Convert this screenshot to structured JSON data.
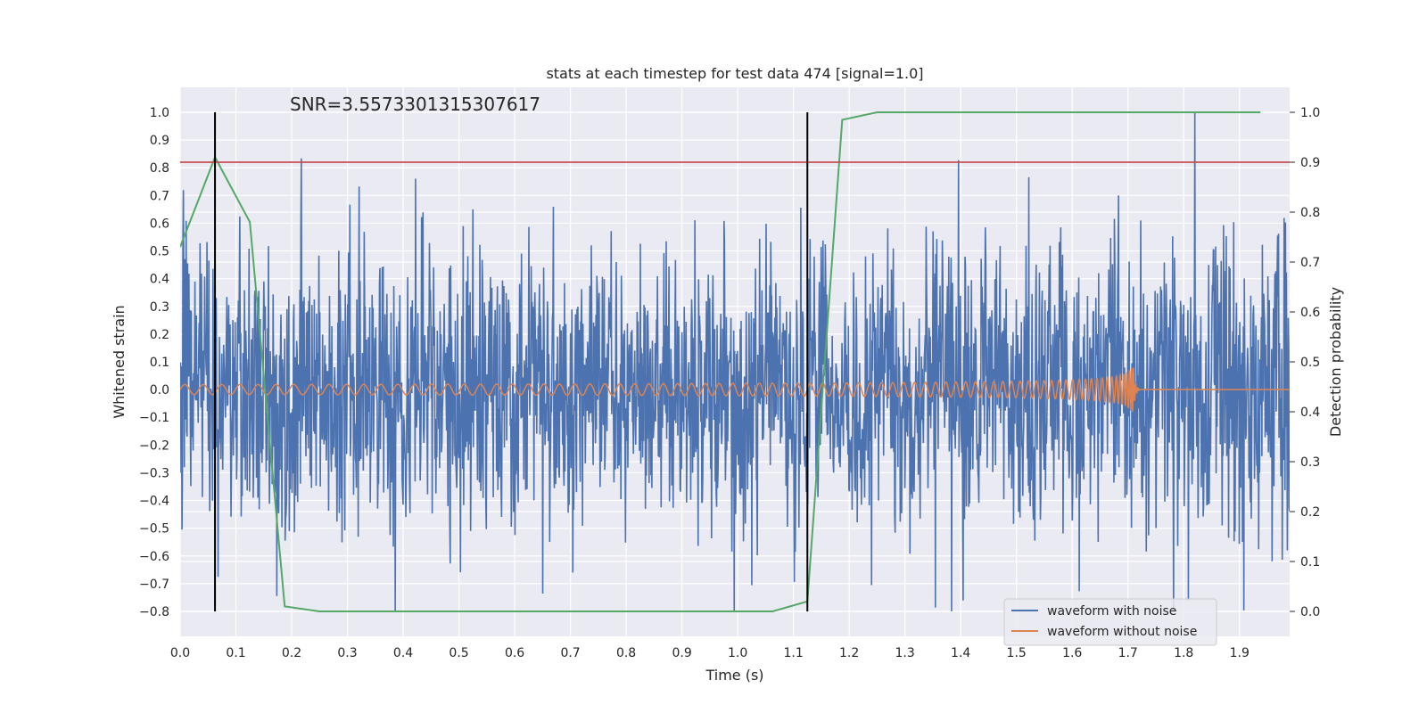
{
  "chart_data": {
    "type": "line",
    "title": "stats at each timestep for test data 474 [signal=1.0]",
    "xlabel": "Time (s)",
    "ylabel": "Whitened strain",
    "y2label": "Detection probability",
    "annotation": "SNR=3.5573301315307617",
    "xlim": [
      0.0,
      1.99
    ],
    "ylim": [
      -0.89,
      1.09
    ],
    "y2lim": [
      -0.05,
      1.05
    ],
    "xticks": [
      "0.0",
      "0.1",
      "0.2",
      "0.3",
      "0.4",
      "0.5",
      "0.6",
      "0.7",
      "0.8",
      "0.9",
      "1.0",
      "1.1",
      "1.2",
      "1.3",
      "1.4",
      "1.5",
      "1.6",
      "1.7",
      "1.8",
      "1.9"
    ],
    "yticks": [
      "−0.8",
      "−0.7",
      "−0.6",
      "−0.5",
      "−0.4",
      "−0.3",
      "−0.2",
      "−0.1",
      "0.0",
      "0.1",
      "0.2",
      "0.3",
      "0.4",
      "0.5",
      "0.6",
      "0.7",
      "0.8",
      "0.9",
      "1.0"
    ],
    "y2ticks": [
      "0.0",
      "0.1",
      "0.2",
      "0.3",
      "0.4",
      "0.5",
      "0.6",
      "0.7",
      "0.8",
      "0.9",
      "1.0"
    ],
    "grid": true,
    "legend_position": "bottom-right",
    "threshold": 0.9,
    "vertical_markers": [
      0.0625,
      1.125
    ],
    "series": [
      {
        "name": "waveform with noise",
        "color": "#4c72b0",
        "axis": "left",
        "kind": "noise",
        "amplitude_range": [
          -0.8,
          1.0
        ],
        "peak_x": 1.82,
        "peak_y": 1.0
      },
      {
        "name": "waveform without noise",
        "color": "#dd8452",
        "axis": "left",
        "kind": "chirp",
        "merger_time": 1.71,
        "peak_amplitude": 0.08
      },
      {
        "name": "",
        "color": "#55a868",
        "axis": "right",
        "x": [
          0.0,
          0.0625,
          0.125,
          0.1875,
          0.25,
          0.3125,
          0.375,
          0.4375,
          0.5,
          0.5625,
          0.625,
          0.6875,
          0.75,
          0.8125,
          0.875,
          0.9375,
          1.0,
          1.0625,
          1.125,
          1.1875,
          1.25,
          1.3125,
          1.375,
          1.4375,
          1.5,
          1.5625,
          1.625,
          1.6875,
          1.75,
          1.8125,
          1.875,
          1.9375
        ],
        "y": [
          0.73,
          0.91,
          0.78,
          0.01,
          0.0,
          0.0,
          0.0,
          0.0,
          0.0,
          0.0,
          0.0,
          0.0,
          0.0,
          0.0,
          0.0,
          0.0,
          0.0,
          0.0,
          0.02,
          0.985,
          1.0,
          1.0,
          1.0,
          1.0,
          1.0,
          1.0,
          1.0,
          1.0,
          1.0,
          1.0,
          1.0,
          1.0
        ]
      },
      {
        "name": "",
        "color": "#c44e52",
        "axis": "right",
        "kind": "threshold-line",
        "value": 0.9
      }
    ]
  }
}
